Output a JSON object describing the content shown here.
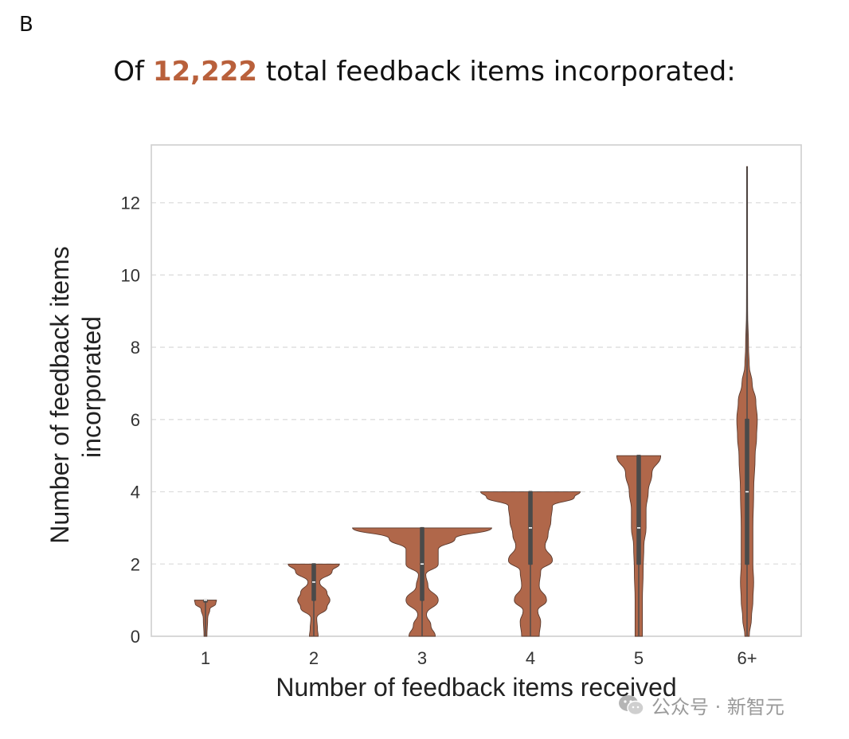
{
  "panel_label": "B",
  "title": {
    "prefix": "Of ",
    "highlight": "12,222",
    "suffix": " total feedback items incorporated:",
    "highlight_color": "#b9603b"
  },
  "watermark": {
    "text": "公众号 · 新智元",
    "icon": "wechat-icon"
  },
  "chart_data": {
    "type": "violin",
    "xlabel": "Number of feedback items received",
    "ylabel_lines": [
      "Number of feedback items",
      "incorporated"
    ],
    "ylim": [
      0,
      13.6
    ],
    "yticks": [
      0,
      2,
      4,
      6,
      8,
      10,
      12
    ],
    "grid": "horizontal-dashed",
    "color": "#b0674a",
    "categories": [
      "1",
      "2",
      "3",
      "4",
      "5",
      "6+"
    ],
    "violins": [
      {
        "category": "1",
        "min": 0,
        "max": 1,
        "q1": 1,
        "median": 1,
        "q3": 1,
        "density": [
          [
            0,
            0.02
          ],
          [
            0.5,
            0.03
          ],
          [
            0.75,
            0.06
          ],
          [
            0.9,
            0.14
          ],
          [
            1,
            0.15
          ]
        ]
      },
      {
        "category": "2",
        "min": 0,
        "max": 2,
        "q1": 1,
        "median": 1.5,
        "q3": 2,
        "density": [
          [
            0,
            0.06
          ],
          [
            0.2,
            0.05
          ],
          [
            0.5,
            0.04
          ],
          [
            0.8,
            0.18
          ],
          [
            1,
            0.22
          ],
          [
            1.2,
            0.18
          ],
          [
            1.5,
            0.08
          ],
          [
            1.8,
            0.25
          ],
          [
            2,
            0.35
          ]
        ]
      },
      {
        "category": "3",
        "min": 0,
        "max": 3,
        "q1": 1,
        "median": 2,
        "q3": 3,
        "density": [
          [
            0,
            0.18
          ],
          [
            0.3,
            0.12
          ],
          [
            0.6,
            0.06
          ],
          [
            1,
            0.22
          ],
          [
            1.4,
            0.08
          ],
          [
            1.7,
            0.05
          ],
          [
            2,
            0.22
          ],
          [
            2.4,
            0.22
          ],
          [
            2.7,
            0.45
          ],
          [
            3,
            0.95
          ]
        ]
      },
      {
        "category": "4",
        "min": 0,
        "max": 4,
        "q1": 2,
        "median": 3,
        "q3": 4,
        "density": [
          [
            0,
            0.12
          ],
          [
            0.4,
            0.14
          ],
          [
            0.7,
            0.1
          ],
          [
            1,
            0.22
          ],
          [
            1.4,
            0.12
          ],
          [
            1.8,
            0.14
          ],
          [
            2.1,
            0.3
          ],
          [
            2.5,
            0.2
          ],
          [
            2.8,
            0.24
          ],
          [
            3.2,
            0.28
          ],
          [
            3.6,
            0.3
          ],
          [
            3.85,
            0.6
          ],
          [
            4,
            0.68
          ]
        ]
      },
      {
        "category": "5",
        "min": 0,
        "max": 5,
        "q1": 2,
        "median": 3,
        "q3": 5,
        "density": [
          [
            0,
            0.05
          ],
          [
            1,
            0.05
          ],
          [
            1.8,
            0.06
          ],
          [
            2.5,
            0.07
          ],
          [
            3,
            0.1
          ],
          [
            3.5,
            0.1
          ],
          [
            4,
            0.13
          ],
          [
            4.5,
            0.18
          ],
          [
            5,
            0.3
          ]
        ]
      },
      {
        "category": "6+",
        "min": 0,
        "max": 13,
        "q1": 2,
        "median": 4,
        "q3": 6,
        "density": [
          [
            0,
            0.03
          ],
          [
            0.5,
            0.06
          ],
          [
            1,
            0.08
          ],
          [
            1.5,
            0.09
          ],
          [
            2,
            0.08
          ],
          [
            3,
            0.08
          ],
          [
            4,
            0.09
          ],
          [
            5,
            0.11
          ],
          [
            5.5,
            0.13
          ],
          [
            6,
            0.14
          ],
          [
            6.5,
            0.12
          ],
          [
            7,
            0.07
          ],
          [
            7.5,
            0.03
          ],
          [
            8,
            0.02
          ],
          [
            9,
            0.008
          ],
          [
            10,
            0.004
          ],
          [
            11,
            0.002
          ],
          [
            12,
            0.0015
          ],
          [
            13,
            0.001
          ]
        ]
      }
    ]
  }
}
